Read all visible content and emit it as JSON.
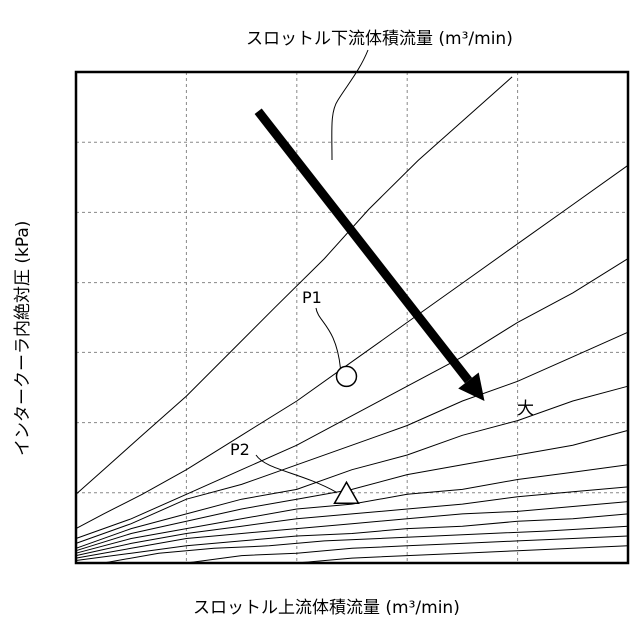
{
  "chart_data": {
    "type": "line",
    "title": "",
    "xlabel": "スロットル上流体積流量 (m³/min)",
    "ylabel": "インタークーラ内絶対圧 (kPa)",
    "series_label": "スロットル下流体積流量 (m³/min)",
    "xlim": [
      0,
      1
    ],
    "ylim": [
      0,
      1
    ],
    "x_ticks": [
      0,
      0.2,
      0.4,
      0.6,
      0.8,
      1.0
    ],
    "y_ticks": [
      0,
      0.143,
      0.286,
      0.429,
      0.571,
      0.714,
      0.857,
      1.0
    ],
    "grid": true,
    "curves": [
      [
        [
          0.0,
          0.14
        ],
        [
          0.05,
          0.19
        ],
        [
          0.12,
          0.26
        ],
        [
          0.2,
          0.34
        ],
        [
          0.28,
          0.43
        ],
        [
          0.36,
          0.52
        ],
        [
          0.45,
          0.62
        ],
        [
          0.53,
          0.72
        ],
        [
          0.62,
          0.82
        ],
        [
          0.7,
          0.9
        ],
        [
          0.79,
          0.99
        ]
      ],
      [
        [
          0.0,
          0.07
        ],
        [
          0.05,
          0.1
        ],
        [
          0.12,
          0.14
        ],
        [
          0.2,
          0.19
        ],
        [
          0.3,
          0.26
        ],
        [
          0.4,
          0.33
        ],
        [
          0.5,
          0.41
        ],
        [
          0.6,
          0.49
        ],
        [
          0.7,
          0.57
        ],
        [
          0.8,
          0.65
        ],
        [
          0.9,
          0.73
        ],
        [
          1.0,
          0.81
        ]
      ],
      [
        [
          0.0,
          0.05
        ],
        [
          0.1,
          0.09
        ],
        [
          0.2,
          0.14
        ],
        [
          0.3,
          0.19
        ],
        [
          0.4,
          0.24
        ],
        [
          0.5,
          0.3
        ],
        [
          0.6,
          0.36
        ],
        [
          0.7,
          0.42
        ],
        [
          0.8,
          0.49
        ],
        [
          0.9,
          0.55
        ],
        [
          1.0,
          0.62
        ]
      ],
      [
        [
          0.0,
          0.04
        ],
        [
          0.1,
          0.08
        ],
        [
          0.2,
          0.13
        ],
        [
          0.3,
          0.16
        ],
        [
          0.4,
          0.2
        ],
        [
          0.5,
          0.24
        ],
        [
          0.6,
          0.28
        ],
        [
          0.7,
          0.33
        ],
        [
          0.8,
          0.37
        ],
        [
          0.9,
          0.42
        ],
        [
          1.0,
          0.47
        ]
      ],
      [
        [
          0.0,
          0.03
        ],
        [
          0.1,
          0.07
        ],
        [
          0.2,
          0.1
        ],
        [
          0.3,
          0.13
        ],
        [
          0.4,
          0.15
        ],
        [
          0.5,
          0.19
        ],
        [
          0.6,
          0.22
        ],
        [
          0.7,
          0.26
        ],
        [
          0.8,
          0.29
        ],
        [
          0.9,
          0.33
        ],
        [
          1.0,
          0.36
        ]
      ],
      [
        [
          0.0,
          0.025
        ],
        [
          0.1,
          0.06
        ],
        [
          0.2,
          0.085
        ],
        [
          0.3,
          0.11
        ],
        [
          0.4,
          0.13
        ],
        [
          0.5,
          0.15
        ],
        [
          0.6,
          0.18
        ],
        [
          0.7,
          0.2
        ],
        [
          0.8,
          0.22
        ],
        [
          0.9,
          0.24
        ],
        [
          1.0,
          0.27
        ]
      ],
      [
        [
          0.0,
          0.02
        ],
        [
          0.1,
          0.05
        ],
        [
          0.2,
          0.07
        ],
        [
          0.3,
          0.09
        ],
        [
          0.4,
          0.11
        ],
        [
          0.5,
          0.12
        ],
        [
          0.6,
          0.14
        ],
        [
          0.7,
          0.15
        ],
        [
          0.8,
          0.17
        ],
        [
          0.9,
          0.185
        ],
        [
          1.0,
          0.2
        ]
      ],
      [
        [
          0.0,
          0.015
        ],
        [
          0.1,
          0.04
        ],
        [
          0.2,
          0.06
        ],
        [
          0.3,
          0.075
        ],
        [
          0.4,
          0.09
        ],
        [
          0.5,
          0.1
        ],
        [
          0.6,
          0.11
        ],
        [
          0.7,
          0.12
        ],
        [
          0.8,
          0.135
        ],
        [
          0.9,
          0.145
        ],
        [
          1.0,
          0.155
        ]
      ],
      [
        [
          0.0,
          0.01
        ],
        [
          0.1,
          0.03
        ],
        [
          0.2,
          0.05
        ],
        [
          0.3,
          0.06
        ],
        [
          0.4,
          0.07
        ],
        [
          0.5,
          0.08
        ],
        [
          0.6,
          0.09
        ],
        [
          0.7,
          0.1
        ],
        [
          0.8,
          0.105
        ],
        [
          0.9,
          0.115
        ],
        [
          1.0,
          0.125
        ]
      ],
      [
        [
          0.0,
          0.005
        ],
        [
          0.1,
          0.02
        ],
        [
          0.2,
          0.035
        ],
        [
          0.3,
          0.045
        ],
        [
          0.4,
          0.055
        ],
        [
          0.5,
          0.06
        ],
        [
          0.6,
          0.07
        ],
        [
          0.7,
          0.075
        ],
        [
          0.8,
          0.085
        ],
        [
          0.9,
          0.09
        ],
        [
          1.0,
          0.1
        ]
      ],
      [
        [
          0.05,
          0.0
        ],
        [
          0.15,
          0.02
        ],
        [
          0.25,
          0.03
        ],
        [
          0.35,
          0.035
        ],
        [
          0.45,
          0.045
        ],
        [
          0.55,
          0.05
        ],
        [
          0.65,
          0.055
        ],
        [
          0.75,
          0.06
        ],
        [
          0.85,
          0.065
        ],
        [
          1.0,
          0.075
        ]
      ],
      [
        [
          0.2,
          0.0
        ],
        [
          0.3,
          0.015
        ],
        [
          0.4,
          0.02
        ],
        [
          0.5,
          0.03
        ],
        [
          0.6,
          0.035
        ],
        [
          0.7,
          0.04
        ],
        [
          0.8,
          0.045
        ],
        [
          0.9,
          0.05
        ],
        [
          1.0,
          0.055
        ]
      ],
      [
        [
          0.4,
          0.0
        ],
        [
          0.5,
          0.01
        ],
        [
          0.6,
          0.015
        ],
        [
          0.7,
          0.02
        ],
        [
          0.8,
          0.025
        ],
        [
          0.9,
          0.03
        ],
        [
          1.0,
          0.035
        ]
      ]
    ],
    "points": [
      {
        "label": "P1",
        "marker": "circle",
        "x": 0.49,
        "y": 0.38
      },
      {
        "label": "P2",
        "marker": "triangle",
        "x": 0.49,
        "y": 0.14
      }
    ],
    "arrow": {
      "from": [
        0.33,
        0.92
      ],
      "to": [
        0.74,
        0.33
      ],
      "label": "大"
    }
  }
}
